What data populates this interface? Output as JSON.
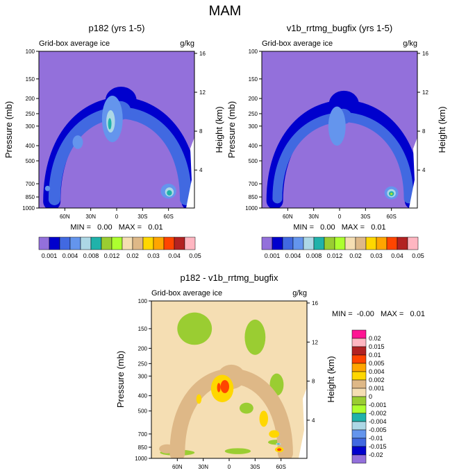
{
  "title": "MAM",
  "colors": {
    "abs": [
      "#9370db",
      "#0000cd",
      "#4169e1",
      "#6495ed",
      "#add8e6",
      "#20b2aa",
      "#9acd32",
      "#adff2f",
      "#f5deb3",
      "#deb887",
      "#ffd700",
      "#ffa500",
      "#ff4500",
      "#b22222",
      "#ffb6c1",
      "#ff1493"
    ],
    "diff": [
      "#9370db",
      "#0000cd",
      "#4169e1",
      "#6495ed",
      "#add8e6",
      "#20b2aa",
      "#9acd32",
      "#adff2f",
      "#f5deb3",
      "#deb887",
      "#ffd700",
      "#ffa500",
      "#ff4500",
      "#b22222",
      "#ffb6c1",
      "#ff1493"
    ]
  },
  "chart_data": [
    {
      "id": "p182",
      "type": "heatmap",
      "title": "p182 (yrs 1-5)",
      "left_label": "Grid-box average ice",
      "right_label": "g/kg",
      "ylabel": "Pressure (mb)",
      "ylabel_right": "Height (km)",
      "x_range": [
        90,
        -90
      ],
      "x_ticks": [
        {
          "v": 60,
          "label": "60N"
        },
        {
          "v": 30,
          "label": "30N"
        },
        {
          "v": 0,
          "label": "0"
        },
        {
          "v": -30,
          "label": "30S"
        },
        {
          "v": -60,
          "label": "60S"
        }
      ],
      "p_range": [
        100,
        1000
      ],
      "p_ticks": [
        {
          "v": 100,
          "label": "100"
        },
        {
          "v": 150,
          "label": "150"
        },
        {
          "v": 200,
          "label": "200"
        },
        {
          "v": 250,
          "label": "250"
        },
        {
          "v": 300,
          "label": "300"
        },
        {
          "v": 400,
          "label": "400"
        },
        {
          "v": 500,
          "label": "500"
        },
        {
          "v": 700,
          "label": "700"
        },
        {
          "v": 850,
          "label": "850"
        },
        {
          "v": 1000,
          "label": "1000"
        }
      ],
      "h_ticks": [
        {
          "v": 16,
          "label": "16"
        },
        {
          "v": 12,
          "label": "12"
        },
        {
          "v": 8,
          "label": "8"
        },
        {
          "v": 4,
          "label": "4"
        }
      ],
      "min_max": "MIN =   0.00   MAX =   0.01",
      "colorbar_labels": [
        "0.001",
        "0.004",
        "0.008",
        "0.012",
        "0.02",
        "0.03",
        "0.04",
        "0.05"
      ],
      "features": [
        {
          "kind": "arch",
          "level": 1,
          "lat": [
            75,
            -85
          ],
          "p_top": 190,
          "p_bot": 910,
          "width": 25
        },
        {
          "kind": "arch",
          "level": 2,
          "lat": [
            72,
            -80
          ],
          "p_top": 220,
          "p_bot": 880,
          "width": 17
        },
        {
          "kind": "blob",
          "level": 3,
          "lat": 5,
          "p": 270,
          "dlat": 12,
          "dp": 110
        },
        {
          "kind": "blob",
          "level": 4,
          "lat": 7,
          "p": 280,
          "dlat": 5,
          "dp": 50
        },
        {
          "kind": "blob",
          "level": 5,
          "lat": 8,
          "p": 290,
          "dlat": 2,
          "dp": 25
        },
        {
          "kind": "blob",
          "level": 3,
          "lat": -60,
          "p": 780,
          "dlat": 9,
          "dp": 90
        },
        {
          "kind": "blob",
          "level": 4,
          "lat": -61,
          "p": 790,
          "dlat": 5,
          "dp": 55
        },
        {
          "kind": "blob",
          "level": 5,
          "lat": -61,
          "p": 800,
          "dlat": 3,
          "dp": 32
        },
        {
          "kind": "blob",
          "level": 3,
          "lat": 80,
          "p": 750,
          "dlat": 3,
          "dp": 30
        },
        {
          "kind": "blob",
          "level": 3,
          "lat": 45,
          "p": 380,
          "dlat": 6,
          "dp": 40
        }
      ]
    },
    {
      "id": "v1b",
      "type": "heatmap",
      "title": "v1b_rrtmg_bugfix (yrs 1-5)",
      "left_label": "Grid-box average ice",
      "right_label": "g/kg",
      "ylabel": "Pressure (mb)",
      "ylabel_right": "Height (km)",
      "x_range": [
        90,
        -90
      ],
      "x_ticks": [
        {
          "v": 60,
          "label": "60N"
        },
        {
          "v": 30,
          "label": "30N"
        },
        {
          "v": 0,
          "label": "0"
        },
        {
          "v": -30,
          "label": "30S"
        },
        {
          "v": -60,
          "label": "60S"
        }
      ],
      "p_range": [
        100,
        1000
      ],
      "p_ticks": [
        {
          "v": 100,
          "label": "100"
        },
        {
          "v": 150,
          "label": "150"
        },
        {
          "v": 200,
          "label": "200"
        },
        {
          "v": 250,
          "label": "250"
        },
        {
          "v": 300,
          "label": "300"
        },
        {
          "v": 400,
          "label": "400"
        },
        {
          "v": 500,
          "label": "500"
        },
        {
          "v": 700,
          "label": "700"
        },
        {
          "v": 850,
          "label": "850"
        },
        {
          "v": 1000,
          "label": "1000"
        }
      ],
      "h_ticks": [
        {
          "v": 16,
          "label": "16"
        },
        {
          "v": 12,
          "label": "12"
        },
        {
          "v": 8,
          "label": "8"
        },
        {
          "v": 4,
          "label": "4"
        }
      ],
      "min_max": "MIN =   0.00   MAX =   0.01",
      "colorbar_labels": [
        "0.001",
        "0.004",
        "0.008",
        "0.012",
        "0.02",
        "0.03",
        "0.04",
        "0.05"
      ],
      "features": [
        {
          "kind": "arch",
          "level": 1,
          "lat": [
            75,
            -85
          ],
          "p_top": 200,
          "p_bot": 900,
          "width": 24
        },
        {
          "kind": "arch",
          "level": 2,
          "lat": [
            72,
            -80
          ],
          "p_top": 240,
          "p_bot": 870,
          "width": 14
        },
        {
          "kind": "blob",
          "level": 3,
          "lat": 3,
          "p": 300,
          "dlat": 10,
          "dp": 100
        },
        {
          "kind": "blob",
          "level": 3,
          "lat": -60,
          "p": 800,
          "dlat": 8,
          "dp": 80
        },
        {
          "kind": "blob",
          "level": 4,
          "lat": -60,
          "p": 805,
          "dlat": 5,
          "dp": 50
        },
        {
          "kind": "blob",
          "level": 5,
          "lat": -60,
          "p": 810,
          "dlat": 3,
          "dp": 30
        },
        {
          "kind": "blob",
          "level": 6,
          "lat": -60,
          "p": 812,
          "dlat": 1.5,
          "dp": 15
        },
        {
          "kind": "blob",
          "level": 7,
          "lat": -60,
          "p": 814,
          "dlat": 0.8,
          "dp": 8
        }
      ]
    },
    {
      "id": "diff",
      "type": "heatmap",
      "title": "p182 - v1b_rrtmg_bugfix",
      "left_label": "Grid-box average ice",
      "right_label": "g/kg",
      "ylabel": "Pressure (mb)",
      "ylabel_right": "Height (km)",
      "x_range": [
        90,
        -90
      ],
      "x_ticks": [
        {
          "v": 60,
          "label": "60N"
        },
        {
          "v": 30,
          "label": "30N"
        },
        {
          "v": 0,
          "label": "0"
        },
        {
          "v": -30,
          "label": "30S"
        },
        {
          "v": -60,
          "label": "60S"
        }
      ],
      "p_range": [
        100,
        1000
      ],
      "p_ticks": [
        {
          "v": 100,
          "label": "100"
        },
        {
          "v": 150,
          "label": "150"
        },
        {
          "v": 200,
          "label": "200"
        },
        {
          "v": 250,
          "label": "250"
        },
        {
          "v": 300,
          "label": "300"
        },
        {
          "v": 400,
          "label": "400"
        },
        {
          "v": 500,
          "label": "500"
        },
        {
          "v": 700,
          "label": "700"
        },
        {
          "v": 850,
          "label": "850"
        },
        {
          "v": 1000,
          "label": "1000"
        }
      ],
      "h_ticks": [
        {
          "v": 16,
          "label": "16"
        },
        {
          "v": 12,
          "label": "12"
        },
        {
          "v": 8,
          "label": "8"
        },
        {
          "v": 4,
          "label": "4"
        }
      ],
      "min_max": "MIN =  -0.00   MAX =   0.01",
      "colorbar_labels": [
        "0.02",
        "0.015",
        "0.01",
        "0.005",
        "0.004",
        "0.002",
        "0.001",
        "0",
        "-0.001",
        "-0.002",
        "-0.004",
        "-0.005",
        "-0.01",
        "-0.015",
        "-0.02"
      ],
      "features": [
        {
          "kind": "blob",
          "level": 6,
          "lat": 40,
          "p": 150,
          "dlat": 20,
          "dp": 40
        },
        {
          "kind": "blob",
          "level": 6,
          "lat": -30,
          "p": 170,
          "dlat": 12,
          "dp": 50
        },
        {
          "kind": "blob",
          "level": 6,
          "lat": -20,
          "p": 480,
          "dlat": 8,
          "dp": 40
        },
        {
          "kind": "blob",
          "level": 6,
          "lat": -55,
          "p": 340,
          "dlat": 8,
          "dp": 60
        },
        {
          "kind": "blob",
          "level": 6,
          "lat": 60,
          "p": 920,
          "dlat": 20,
          "dp": 40
        },
        {
          "kind": "blob",
          "level": 6,
          "lat": -10,
          "p": 900,
          "dlat": 15,
          "dp": 40
        },
        {
          "kind": "blob",
          "level": 6,
          "lat": -55,
          "p": 790,
          "dlat": 10,
          "dp": 30
        },
        {
          "kind": "arch",
          "level": 9,
          "lat": [
            60,
            -65
          ],
          "p_top": 280,
          "p_bot": 930,
          "width": 22
        },
        {
          "kind": "blob",
          "level": 9,
          "lat": 72,
          "p": 870,
          "dlat": 9,
          "dp": 60
        },
        {
          "kind": "blob",
          "level": 10,
          "lat": 8,
          "p": 360,
          "dlat": 13,
          "dp": 80
        },
        {
          "kind": "blob",
          "level": 10,
          "lat": 35,
          "p": 420,
          "dlat": 3,
          "dp": 30
        },
        {
          "kind": "blob",
          "level": 10,
          "lat": -40,
          "p": 560,
          "dlat": 5,
          "dp": 70
        },
        {
          "kind": "blob",
          "level": 10,
          "lat": -52,
          "p": 700,
          "dlat": 6,
          "dp": 40
        },
        {
          "kind": "blob",
          "level": 10,
          "lat": -58,
          "p": 880,
          "dlat": 5,
          "dp": 35
        },
        {
          "kind": "blob",
          "level": 11,
          "lat": 5,
          "p": 350,
          "dlat": 5,
          "dp": 35
        },
        {
          "kind": "blob",
          "level": 11,
          "lat": 12,
          "p": 355,
          "dlat": 2,
          "dp": 25
        },
        {
          "kind": "blob",
          "level": 11,
          "lat": -58,
          "p": 880,
          "dlat": 2.5,
          "dp": 18
        },
        {
          "kind": "blob",
          "level": 5,
          "lat": -57,
          "p": 810,
          "dlat": 3,
          "dp": 12
        },
        {
          "kind": "blob",
          "level": 3,
          "lat": -57,
          "p": 810,
          "dlat": 1.5,
          "dp": 6
        }
      ]
    }
  ]
}
